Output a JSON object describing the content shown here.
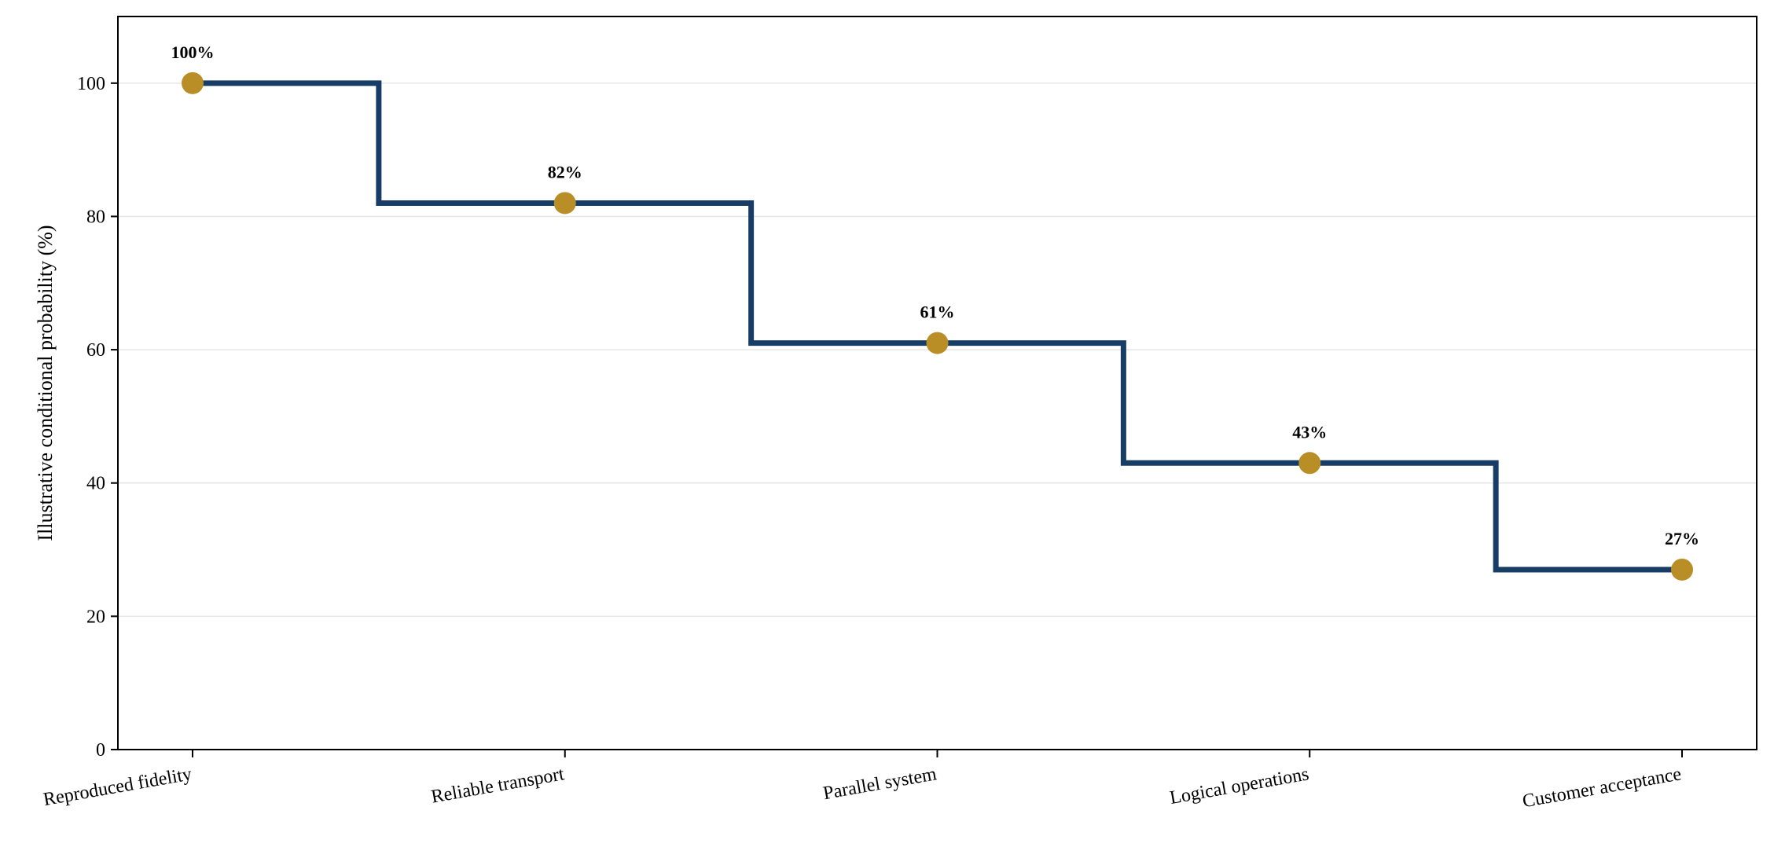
{
  "chart_data": {
    "type": "line",
    "style": "step",
    "title": "",
    "xlabel": "",
    "ylabel": "Illustrative conditional probability (%)",
    "categories": [
      "Reproduced fidelity",
      "Reliable transport",
      "Parallel system",
      "Logical operations",
      "Customer acceptance"
    ],
    "values": [
      100,
      82,
      61,
      43,
      27
    ],
    "data_labels": [
      "100%",
      "82%",
      "61%",
      "43%",
      "27%"
    ],
    "ylim": [
      0,
      110
    ],
    "yticks": [
      0,
      20,
      40,
      60,
      80,
      100
    ],
    "ytick_labels": [
      "0",
      "20",
      "40",
      "60",
      "80",
      "100"
    ],
    "grid": "horizontal",
    "legend": "none",
    "colors": {
      "line": "#173d66",
      "marker": "#b98e26",
      "grid": "#e6e6e6",
      "axis": "#000000"
    }
  }
}
